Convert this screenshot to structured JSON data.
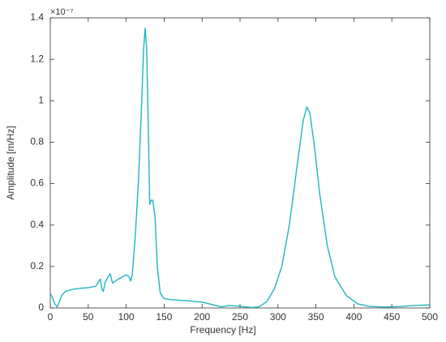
{
  "chart_data": {
    "type": "line",
    "xlabel": "Frequency [Hz]",
    "ylabel": "Amplitude [m/Hz]",
    "y_exponent": "×10⁻⁷",
    "xlim": [
      0,
      500
    ],
    "xticks": [
      0,
      50,
      100,
      150,
      200,
      250,
      300,
      350,
      400,
      450,
      500
    ],
    "ylim": [
      0,
      1.4
    ],
    "yticks": [
      0,
      0.2,
      0.4,
      0.6,
      0.8,
      1,
      1.2,
      1.4
    ],
    "grid": false,
    "series": [
      {
        "color": "#1fb5c0",
        "x": [
          0,
          3,
          6,
          9,
          12,
          15,
          20,
          30,
          40,
          50,
          60,
          66,
          68,
          70,
          72,
          76,
          79,
          82,
          90,
          100,
          104,
          106,
          108,
          112,
          116,
          120,
          123,
          125,
          127,
          129,
          131,
          133,
          135,
          138,
          141,
          145,
          150,
          160,
          180,
          200,
          215,
          225,
          235,
          250,
          265,
          275,
          285,
          295,
          305,
          315,
          325,
          333,
          338,
          342,
          348,
          355,
          365,
          375,
          390,
          405,
          420,
          440,
          460,
          480,
          500
        ],
        "values": [
          0.07,
          0.05,
          0.02,
          0.005,
          0.03,
          0.06,
          0.08,
          0.09,
          0.095,
          0.098,
          0.105,
          0.14,
          0.09,
          0.08,
          0.12,
          0.15,
          0.165,
          0.12,
          0.14,
          0.16,
          0.15,
          0.13,
          0.16,
          0.35,
          0.6,
          0.95,
          1.25,
          1.35,
          1.25,
          0.9,
          0.5,
          0.52,
          0.52,
          0.44,
          0.2,
          0.07,
          0.045,
          0.04,
          0.035,
          0.028,
          0.015,
          0.005,
          0.012,
          0.008,
          0.002,
          0.005,
          0.03,
          0.09,
          0.2,
          0.4,
          0.68,
          0.9,
          0.97,
          0.94,
          0.78,
          0.55,
          0.3,
          0.15,
          0.06,
          0.02,
          0.008,
          0.004,
          0.007,
          0.012,
          0.015
        ]
      }
    ]
  }
}
